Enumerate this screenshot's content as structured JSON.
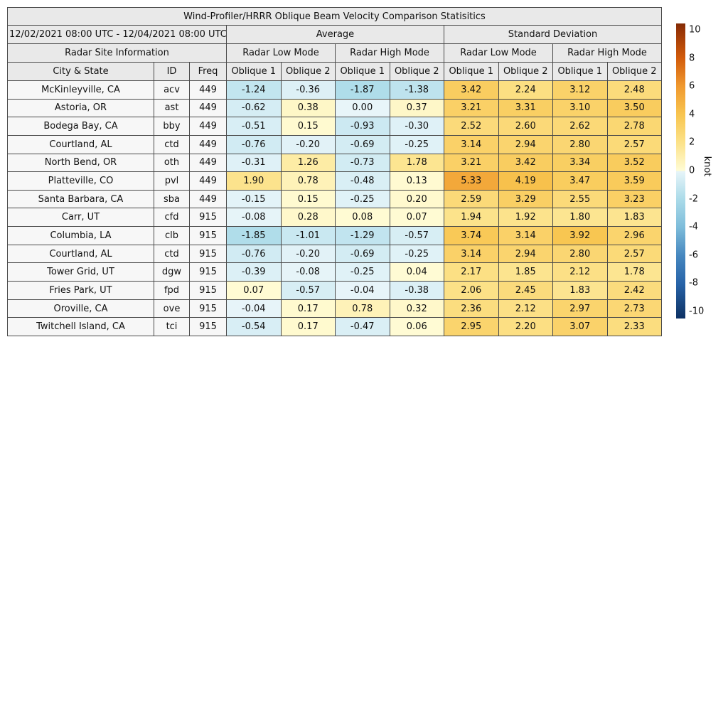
{
  "chart_data": {
    "type": "table",
    "title": "Wind-Profiler/HRRR Oblique Beam Velocity Comparison Statisitics",
    "date_range": "12/02/2021 08:00 UTC - 12/04/2021 08:00 UTC",
    "section_headers": {
      "average": "Average",
      "std_dev": "Standard Deviation",
      "site_info": "Radar Site Information"
    },
    "mode_headers": {
      "low": "Radar Low Mode",
      "high": "Radar High Mode"
    },
    "columns": {
      "city": "City & State",
      "id": "ID",
      "freq": "Freq",
      "oblique1": "Oblique 1",
      "oblique2": "Oblique 2"
    },
    "rows": [
      {
        "city": "McKinleyville, CA",
        "id": "acv",
        "freq": "449",
        "values": [
          -1.24,
          -0.36,
          -1.87,
          -1.38,
          3.42,
          2.24,
          3.12,
          2.48
        ]
      },
      {
        "city": "Astoria, OR",
        "id": "ast",
        "freq": "449",
        "values": [
          -0.62,
          0.38,
          0.0,
          0.37,
          3.21,
          3.31,
          3.1,
          3.5
        ]
      },
      {
        "city": "Bodega Bay, CA",
        "id": "bby",
        "freq": "449",
        "values": [
          -0.51,
          0.15,
          -0.93,
          -0.3,
          2.52,
          2.6,
          2.62,
          2.78
        ]
      },
      {
        "city": "Courtland, AL",
        "id": "ctd",
        "freq": "449",
        "values": [
          -0.76,
          -0.2,
          -0.69,
          -0.25,
          3.14,
          2.94,
          2.8,
          2.57
        ]
      },
      {
        "city": "North Bend, OR",
        "id": "oth",
        "freq": "449",
        "values": [
          -0.31,
          1.26,
          -0.73,
          1.78,
          3.21,
          3.42,
          3.34,
          3.52
        ]
      },
      {
        "city": "Platteville, CO",
        "id": "pvl",
        "freq": "449",
        "values": [
          1.9,
          0.78,
          -0.48,
          0.13,
          5.33,
          4.19,
          3.47,
          3.59
        ]
      },
      {
        "city": "Santa Barbara, CA",
        "id": "sba",
        "freq": "449",
        "values": [
          -0.15,
          0.15,
          -0.25,
          0.2,
          2.59,
          3.29,
          2.55,
          3.23
        ]
      },
      {
        "city": "Carr, UT",
        "id": "cfd",
        "freq": "915",
        "values": [
          -0.08,
          0.28,
          0.08,
          0.07,
          1.94,
          1.92,
          1.8,
          1.83
        ]
      },
      {
        "city": "Columbia, LA",
        "id": "clb",
        "freq": "915",
        "values": [
          -1.85,
          -1.01,
          -1.29,
          -0.57,
          3.74,
          3.14,
          3.92,
          2.96
        ]
      },
      {
        "city": "Courtland, AL",
        "id": "ctd",
        "freq": "915",
        "values": [
          -0.76,
          -0.2,
          -0.69,
          -0.25,
          3.14,
          2.94,
          2.8,
          2.57
        ]
      },
      {
        "city": "Tower Grid, UT",
        "id": "dgw",
        "freq": "915",
        "values": [
          -0.39,
          -0.08,
          -0.25,
          0.04,
          2.17,
          1.85,
          2.12,
          1.78
        ]
      },
      {
        "city": "Fries Park, UT",
        "id": "fpd",
        "freq": "915",
        "values": [
          0.07,
          -0.57,
          -0.04,
          -0.38,
          2.06,
          2.45,
          1.83,
          2.42
        ]
      },
      {
        "city": "Oroville, CA",
        "id": "ove",
        "freq": "915",
        "values": [
          -0.04,
          0.17,
          0.78,
          0.32,
          2.36,
          2.12,
          2.97,
          2.73
        ]
      },
      {
        "city": "Twitchell Island, CA",
        "id": "tci",
        "freq": "915",
        "values": [
          -0.54,
          0.17,
          -0.47,
          0.06,
          2.95,
          2.2,
          3.07,
          2.33
        ]
      }
    ],
    "colorbar": {
      "label": "knot",
      "vmin": -10,
      "vmax": 10,
      "ticks": [
        10,
        8,
        6,
        4,
        2,
        0,
        -2,
        -4,
        -6,
        -8,
        -10
      ]
    }
  },
  "colors": {
    "header_bg": "#e9e9e9",
    "site_cell_bg": "#f7f7f7",
    "border": "#4a4a4a",
    "negative_stops": [
      [
        -10.45,
        "#0c3164"
      ],
      [
        -10,
        "#123a6f"
      ],
      [
        -8,
        "#2763a8"
      ],
      [
        -6,
        "#4687bf"
      ],
      [
        -4,
        "#7dbcda"
      ],
      [
        -2,
        "#abdbe9"
      ],
      [
        0,
        "#e8f5f9"
      ]
    ],
    "positive_stops": [
      [
        0,
        "#fffcd6"
      ],
      [
        2,
        "#fce289"
      ],
      [
        4,
        "#f8c54f"
      ],
      [
        6,
        "#f0992f"
      ],
      [
        8,
        "#d25b0a"
      ],
      [
        10,
        "#963306"
      ],
      [
        10.45,
        "#822b05"
      ]
    ]
  }
}
